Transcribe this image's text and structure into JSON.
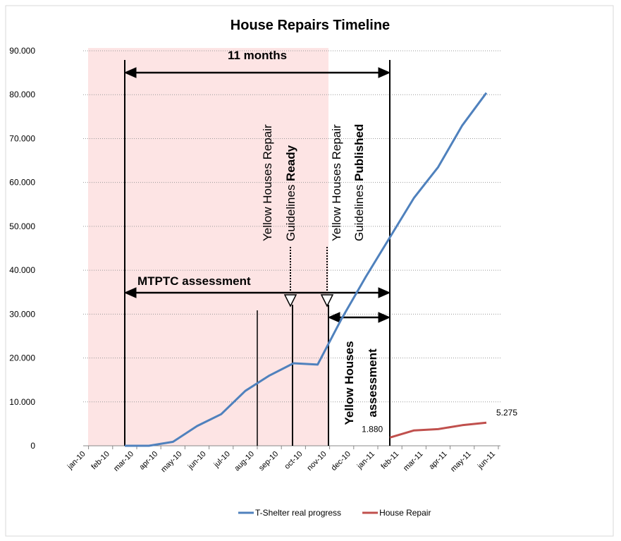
{
  "chart_data": {
    "type": "line",
    "title": "House Repairs Timeline",
    "categories": [
      "jan-10",
      "feb-10",
      "mar-10",
      "apr-10",
      "may-10",
      "jun-10",
      "jul-10",
      "aug-10",
      "sep-10",
      "oct-10",
      "nov-10",
      "dec-10",
      "jan-11",
      "feb-11",
      "mar-11",
      "apr-11",
      "may-11",
      "jun-11"
    ],
    "series": [
      {
        "name": "T-Shelter real progress",
        "color": "#4f81bd",
        "values": [
          null,
          null,
          0,
          0,
          900,
          4500,
          7200,
          12500,
          16000,
          18800,
          18500,
          29000,
          38500,
          47500,
          56500,
          63500,
          73000,
          80400
        ]
      },
      {
        "name": "House Repair",
        "color": "#c0504d",
        "values": [
          null,
          null,
          null,
          null,
          null,
          null,
          null,
          null,
          null,
          null,
          null,
          null,
          null,
          1880,
          3500,
          3800,
          4700,
          5275
        ],
        "value_labels": [
          null,
          null,
          null,
          null,
          null,
          null,
          null,
          null,
          null,
          null,
          null,
          null,
          null,
          "1.880",
          null,
          null,
          null,
          "5.275"
        ]
      }
    ],
    "ylim": [
      0,
      90000
    ],
    "yticks": [
      {
        "value": 0,
        "label": "0"
      },
      {
        "value": 10000,
        "label": "10.000"
      },
      {
        "value": 20000,
        "label": "20.000"
      },
      {
        "value": 30000,
        "label": "30.000"
      },
      {
        "value": 40000,
        "label": "40.000"
      },
      {
        "value": 50000,
        "label": "50.000"
      },
      {
        "value": 60000,
        "label": "60.000"
      },
      {
        "value": 70000,
        "label": "70.000"
      },
      {
        "value": 80000,
        "label": "80.000"
      },
      {
        "value": 90000,
        "label": "90.000"
      }
    ],
    "grid": true,
    "legend": "bottom",
    "annotations": {
      "span": "11 months",
      "mtptc": "MTPTC assessment",
      "ready": [
        "Yellow Houses Repair",
        "Guidelines ",
        "Ready"
      ],
      "published": [
        "Yellow Houses Repair",
        "Guidelines ",
        "Published"
      ],
      "yellow": [
        "Yellow Houses",
        "assessment"
      ]
    }
  }
}
